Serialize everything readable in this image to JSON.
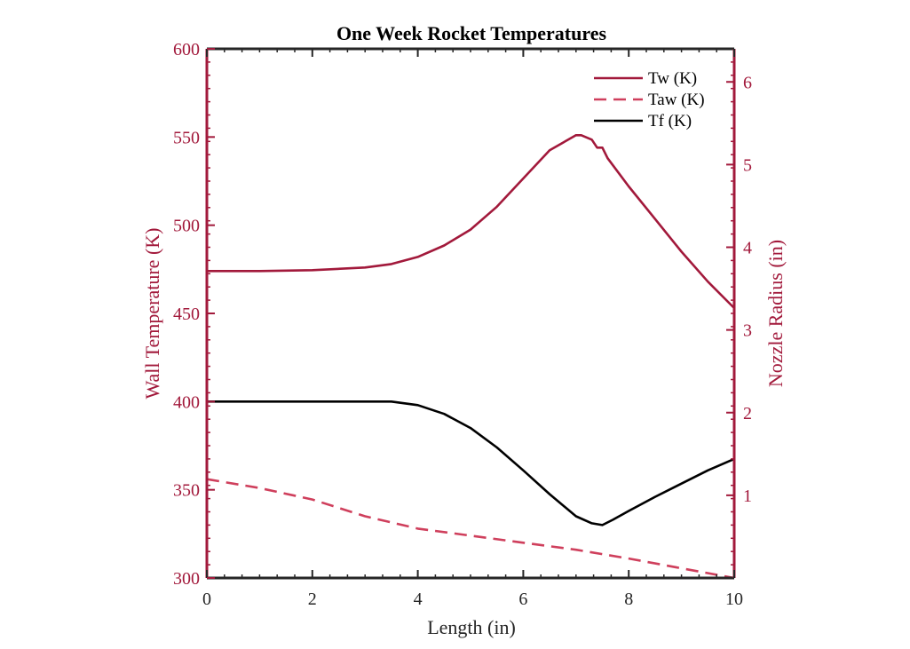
{
  "chart_data": {
    "type": "line",
    "title": "One Week Rocket Temperatures",
    "xlabel": "Length (in)",
    "ylabel": "Wall Temperature (K)",
    "y2label": "Nozzle Radius (in)",
    "xlim": [
      0,
      10
    ],
    "ylim": [
      300,
      600
    ],
    "y2lim": [
      0,
      6.4
    ],
    "xticks": [
      "0",
      "2",
      "4",
      "6",
      "8",
      "10"
    ],
    "yticks": [
      "300",
      "350",
      "400",
      "450",
      "500",
      "550",
      "600"
    ],
    "y2ticks": [
      "1",
      "2",
      "3",
      "4",
      "5",
      "6"
    ],
    "grid": false,
    "legend_position": "top-right",
    "colors": {
      "primary": "#A2193B",
      "secondary": "#CF3F5C",
      "black": "#000000"
    },
    "series": [
      {
        "name": "Tw (K)",
        "style": "solid",
        "color": "#A2193B",
        "x": [
          0,
          1,
          2,
          3,
          3.5,
          4,
          4.5,
          5,
          5.5,
          6,
          6.5,
          7,
          7.1,
          7.3,
          7.4,
          7.5,
          7.6,
          8,
          8.5,
          9,
          9.5,
          10
        ],
        "y": [
          474,
          474,
          474.5,
          476,
          478,
          482,
          488.5,
          497.5,
          510.5,
          526.5,
          542.5,
          551,
          551,
          548.5,
          544,
          544,
          538,
          522,
          503.5,
          485,
          468,
          453
        ]
      },
      {
        "name": "Taw (K)",
        "style": "dashed",
        "color": "#CF3F5C",
        "x": [
          0,
          1,
          2,
          3,
          4,
          5,
          6,
          7,
          8,
          9,
          10
        ],
        "y": [
          356,
          351,
          344.5,
          335,
          328,
          324,
          320,
          316,
          311,
          305.5,
          300
        ]
      },
      {
        "name": "Tf (K)",
        "style": "solid",
        "color": "#000000",
        "x": [
          0,
          1,
          2,
          3,
          3.5,
          4,
          4.5,
          5,
          5.5,
          6,
          6.5,
          7,
          7.3,
          7.5,
          7.7,
          8,
          8.5,
          9,
          9.5,
          10
        ],
        "y": [
          400,
          400,
          400,
          400,
          400,
          398,
          393,
          385,
          374,
          361,
          347.5,
          335,
          331,
          330,
          333,
          338,
          346,
          353.5,
          361,
          367.5
        ]
      }
    ]
  }
}
